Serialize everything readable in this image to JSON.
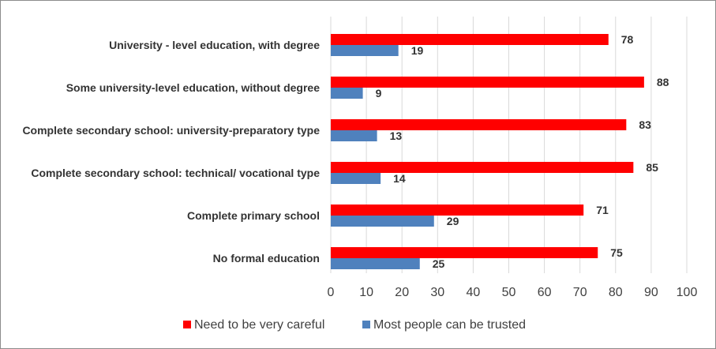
{
  "chart_data": {
    "type": "bar",
    "orientation": "horizontal",
    "categories": [
      "University - level education, with degree",
      "Some university-level education, without degree",
      "Complete secondary school: university-preparatory type",
      "Complete secondary school: technical/ vocational type",
      "Complete primary school",
      "No formal education"
    ],
    "series": [
      {
        "name": "Need to be very careful",
        "color": "#ff0000",
        "values": [
          78,
          88,
          83,
          85,
          71,
          75
        ]
      },
      {
        "name": "Most people can be trusted",
        "color": "#4f81bd",
        "values": [
          19,
          9,
          13,
          14,
          29,
          25
        ]
      }
    ],
    "xlim": [
      0,
      100
    ],
    "x_ticks": [
      0,
      10,
      20,
      30,
      40,
      50,
      60,
      70,
      80,
      90,
      100
    ],
    "grid": true,
    "legend_position": "bottom",
    "title": "",
    "xlabel": "",
    "ylabel": ""
  }
}
